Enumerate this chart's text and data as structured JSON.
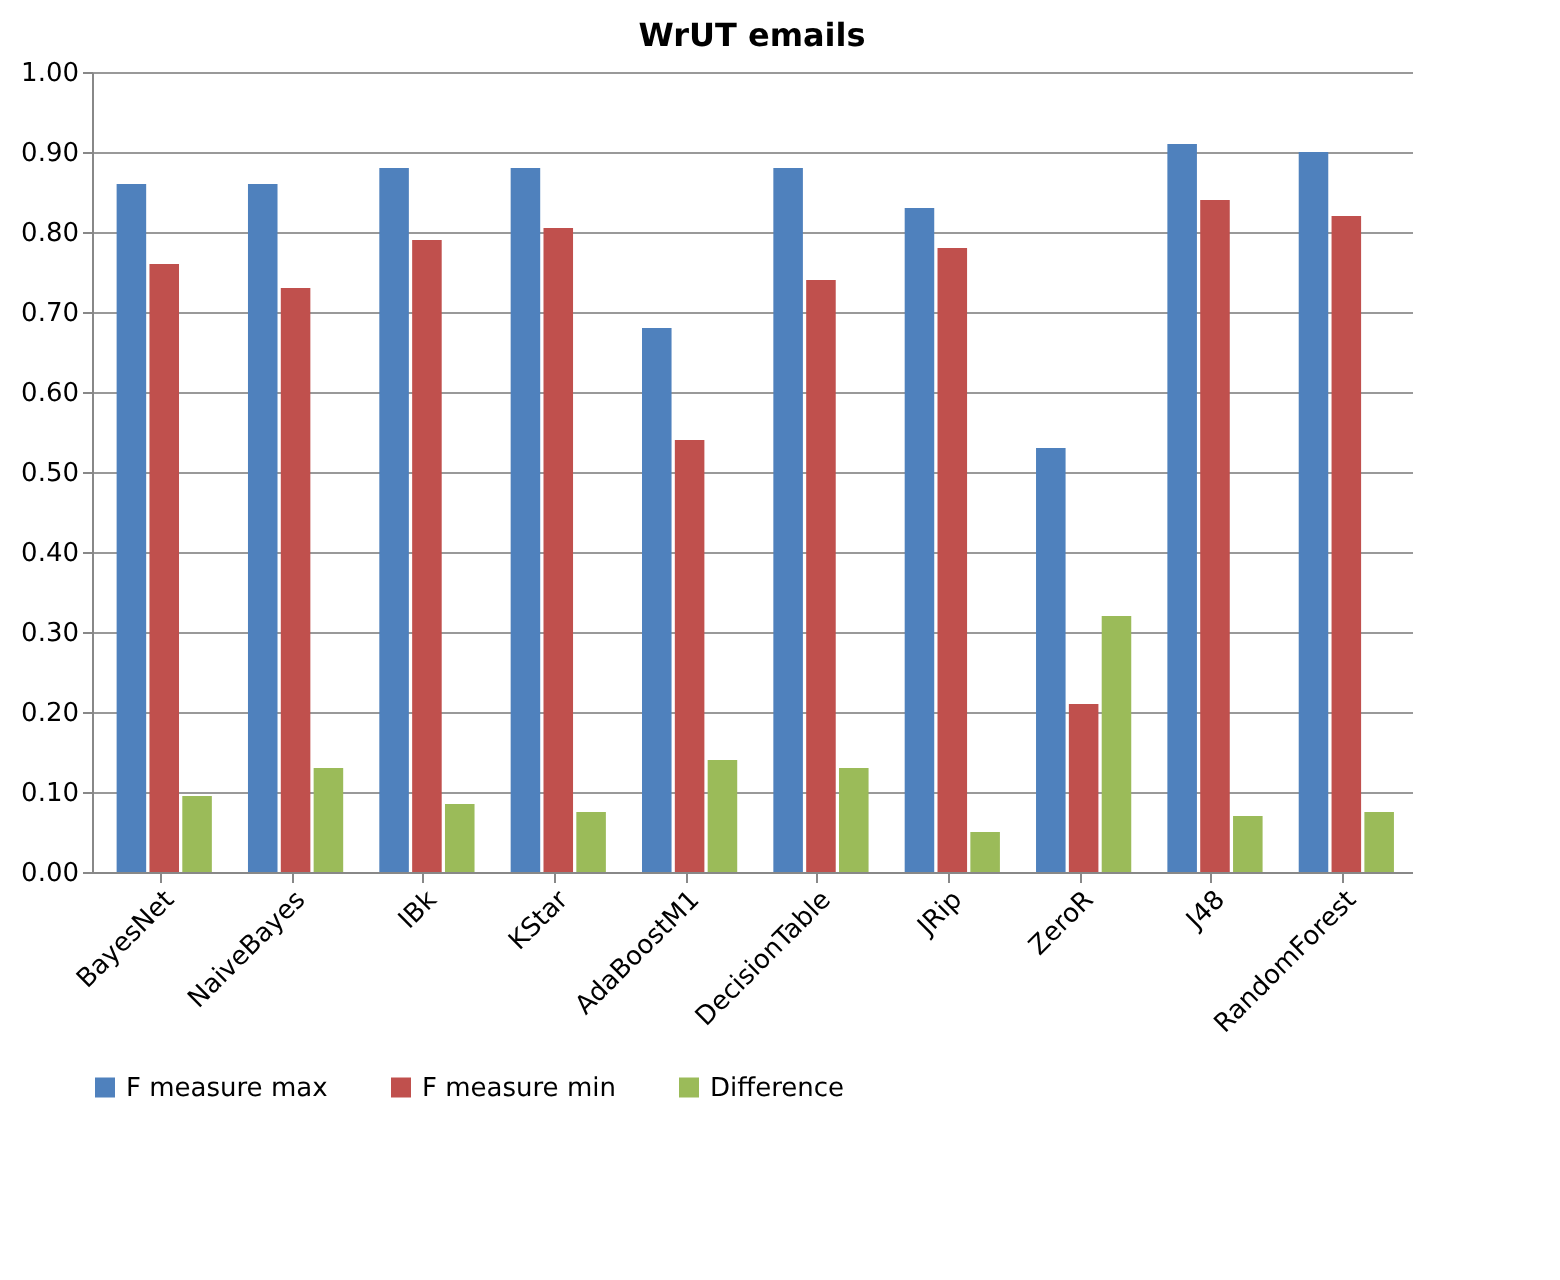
{
  "chart_data": {
    "type": "bar",
    "title": "WrUT emails",
    "categories": [
      "BayesNet",
      "NaiveBayes",
      "IBk",
      "KStar",
      "AdaBoostM1",
      "DecisionTable",
      "JRip",
      "ZeroR",
      "J48",
      "RandomForest"
    ],
    "series": [
      {
        "name": "F measure max",
        "color": "#4f81bd",
        "values": [
          0.86,
          0.86,
          0.88,
          0.88,
          0.68,
          0.88,
          0.83,
          0.53,
          0.91,
          0.9
        ]
      },
      {
        "name": "F measure min",
        "color": "#c0504d",
        "values": [
          0.76,
          0.73,
          0.79,
          0.805,
          0.54,
          0.74,
          0.78,
          0.21,
          0.84,
          0.82
        ]
      },
      {
        "name": "Difference",
        "color": "#9bbb59",
        "values": [
          0.095,
          0.13,
          0.085,
          0.075,
          0.14,
          0.13,
          0.05,
          0.32,
          0.07,
          0.075
        ]
      }
    ],
    "ylim": [
      0,
      1
    ],
    "yticks": [
      {
        "value": 0,
        "label": "0.00"
      },
      {
        "value": 0.1,
        "label": "0.10"
      },
      {
        "value": 0.2,
        "label": "0.20"
      },
      {
        "value": 0.3,
        "label": "0.30"
      },
      {
        "value": 0.4,
        "label": "0.40"
      },
      {
        "value": 0.5,
        "label": "0.50"
      },
      {
        "value": 0.6,
        "label": "0.60"
      },
      {
        "value": 0.7,
        "label": "0.70"
      },
      {
        "value": 0.8,
        "label": "0.80"
      },
      {
        "value": 0.9,
        "label": "0.90"
      },
      {
        "value": 1,
        "label": "1.00"
      }
    ],
    "grid": "y",
    "legend": "bottom"
  }
}
